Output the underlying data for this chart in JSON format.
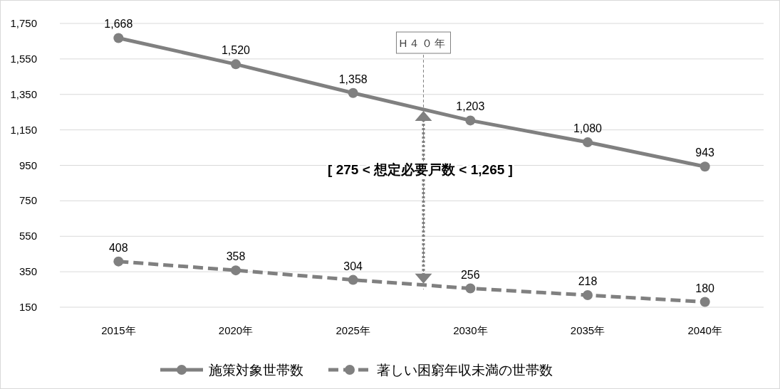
{
  "chart_data": {
    "type": "line",
    "x": [
      2015,
      2020,
      2025,
      2030,
      2035,
      2040
    ],
    "xlim": [
      2012.5,
      2042.5
    ],
    "xticks": [
      {
        "value": 2015,
        "label": "2015年"
      },
      {
        "value": 2020,
        "label": "2020年"
      },
      {
        "value": 2025,
        "label": "2025年"
      },
      {
        "value": 2030,
        "label": "2030年"
      },
      {
        "value": 2035,
        "label": "2035年"
      },
      {
        "value": 2040,
        "label": "2040年"
      }
    ],
    "ref_lines": [
      {
        "axis": "x",
        "value": 2028,
        "label": "H４０年",
        "color": "#808080",
        "line_style": "dashed"
      }
    ],
    "series": [
      {
        "name": "施策対象世帯数",
        "color": "#808080",
        "line_style": "solid",
        "values": [
          1668,
          1520,
          1358,
          1203,
          1080,
          943
        ],
        "value_labels": [
          "1,668",
          "1,520",
          "1,358",
          "1,203",
          "1,080",
          "943"
        ]
      },
      {
        "name": "著しい困窮年収未満の世帯数",
        "color": "#808080",
        "line_style": "dashed",
        "values": [
          408,
          358,
          304,
          256,
          218,
          180
        ],
        "value_labels": [
          "408",
          "358",
          "304",
          "256",
          "218",
          "180"
        ]
      }
    ],
    "ylim": [
      150,
      1750
    ],
    "yticks": [
      {
        "value": 150,
        "label": "150"
      },
      {
        "value": 350,
        "label": "350"
      },
      {
        "value": 550,
        "label": "550"
      },
      {
        "value": 750,
        "label": "750"
      },
      {
        "value": 950,
        "label": "950"
      },
      {
        "value": 1150,
        "label": "1,150"
      },
      {
        "value": 1350,
        "label": "1,350"
      },
      {
        "value": 1550,
        "label": "1,550"
      },
      {
        "value": 1750,
        "label": "1,750"
      }
    ],
    "grid": "y",
    "marker": "circle",
    "legend": "bottom",
    "annotations": [
      "[ 275 < 想定必要戸数 < 1,265 ]"
    ]
  }
}
